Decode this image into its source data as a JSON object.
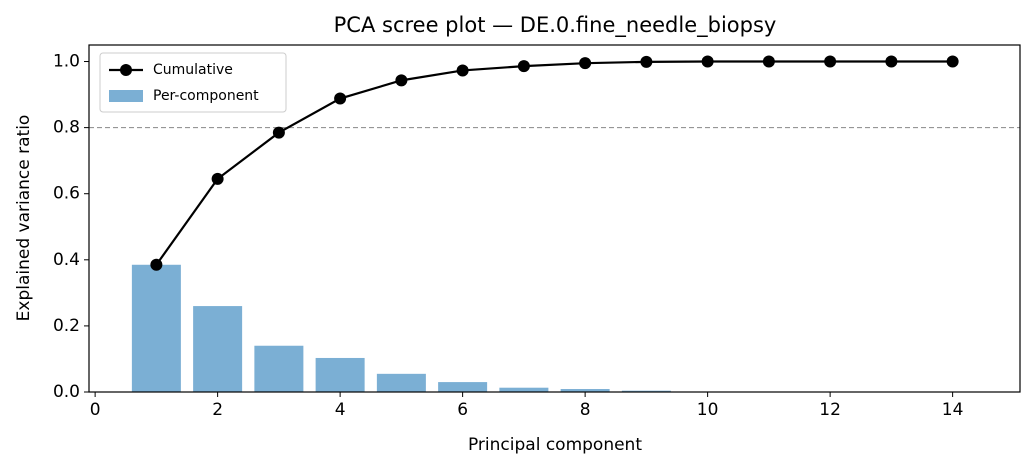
{
  "chart_data": {
    "type": "bar",
    "title": "PCA scree plot — DE.0.fine_needle_biopsy",
    "x_label": "Principal component",
    "y_label": "Explained variance ratio",
    "x": [
      1,
      2,
      3,
      4,
      5,
      6,
      7,
      8,
      9,
      10,
      11,
      12,
      13,
      14
    ],
    "series": [
      {
        "name": "Cumulative",
        "type": "line",
        "color": "#000000",
        "values": [
          0.385,
          0.645,
          0.785,
          0.888,
          0.943,
          0.973,
          0.986,
          0.995,
          0.999,
          1.0,
          1.0,
          1.0,
          1.0,
          1.0
        ]
      },
      {
        "name": "Per-component",
        "type": "bar",
        "color": "#7bafd4",
        "values": [
          0.385,
          0.26,
          0.14,
          0.103,
          0.055,
          0.03,
          0.013,
          0.009,
          0.004,
          0.001,
          0,
          0,
          0,
          0
        ]
      }
    ],
    "threshold": 0.8,
    "xlim": [
      -0.1,
      15.1
    ],
    "ylim": [
      0,
      1.05
    ],
    "xticks": [
      0,
      2,
      4,
      6,
      8,
      10,
      12,
      14
    ],
    "yticks": [
      {
        "value": 0,
        "label": "0.0"
      },
      0.2,
      0.4,
      0.6,
      0.8,
      {
        "value": 1,
        "label": "1.0"
      }
    ],
    "legend": "upper left"
  }
}
